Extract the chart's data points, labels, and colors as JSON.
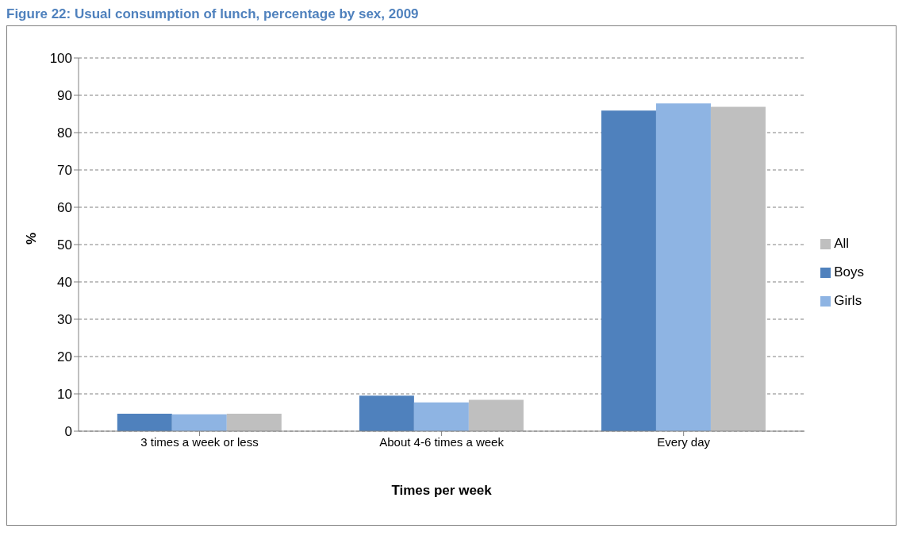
{
  "chart_data": {
    "type": "bar",
    "title": "Figure 22: Usual consumption of lunch, percentage by sex, 2009",
    "xlabel": "Times per week",
    "ylabel": "%",
    "categories": [
      "3 times a week or less",
      "About 4-6 times a week",
      "Every day"
    ],
    "series": [
      {
        "name": "Boys",
        "color": "#4f81bd",
        "values": [
          4.7,
          9.5,
          85.9
        ]
      },
      {
        "name": "Girls",
        "color": "#8eb4e3",
        "values": [
          4.5,
          7.7,
          87.8
        ]
      },
      {
        "name": "All",
        "color": "#bfbfbf",
        "values": [
          4.7,
          8.4,
          86.9
        ]
      }
    ],
    "ylim": [
      0,
      100
    ],
    "yticks": [
      0,
      10,
      20,
      30,
      40,
      50,
      60,
      70,
      80,
      90,
      100
    ],
    "grid": "y",
    "legend": "right"
  }
}
